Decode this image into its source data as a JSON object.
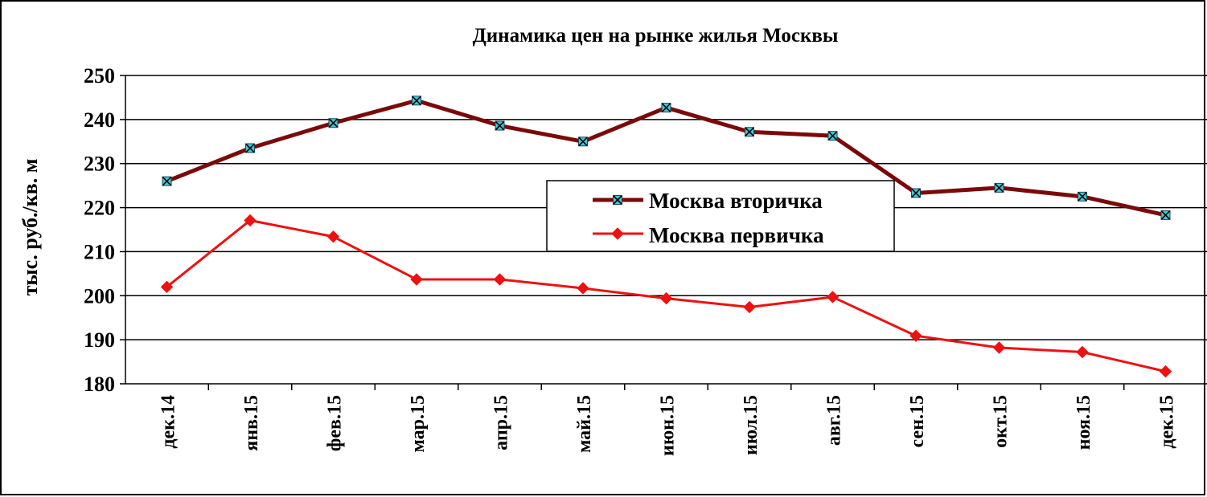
{
  "chart_data": {
    "type": "line",
    "title": "Динамика цен на рынке жилья Москвы",
    "xlabel": "",
    "ylabel": "тыс. руб./кв. м",
    "categories": [
      "дек.14",
      "янв.15",
      "фев.15",
      "мар.15",
      "апр.15",
      "май.15",
      "июн.15",
      "июл.15",
      "авг.15",
      "сен.15",
      "окт.15",
      "ноя.15",
      "дек.15"
    ],
    "y_ticks": [
      "180",
      "190",
      "200",
      "210",
      "220",
      "230",
      "240",
      "250"
    ],
    "ylim": [
      180,
      250
    ],
    "grid": true,
    "legend_position": "center-right",
    "series": [
      {
        "name": "Москва вторичка",
        "color": "#7a0a0a",
        "marker": "x-square",
        "marker_color": "#40c8d8",
        "values": [
          226,
          233.5,
          239.2,
          244.3,
          238.6,
          235,
          242.7,
          237.2,
          236.3,
          223.3,
          224.5,
          222.5,
          218.3
        ]
      },
      {
        "name": "Москва первичка",
        "color": "#ee1111",
        "marker": "diamond",
        "marker_color": "#ee1111",
        "values": [
          202,
          217.1,
          213.4,
          203.7,
          203.7,
          201.7,
          199.4,
          197.4,
          199.7,
          190.9,
          188.2,
          187.2,
          182.8
        ]
      }
    ]
  }
}
